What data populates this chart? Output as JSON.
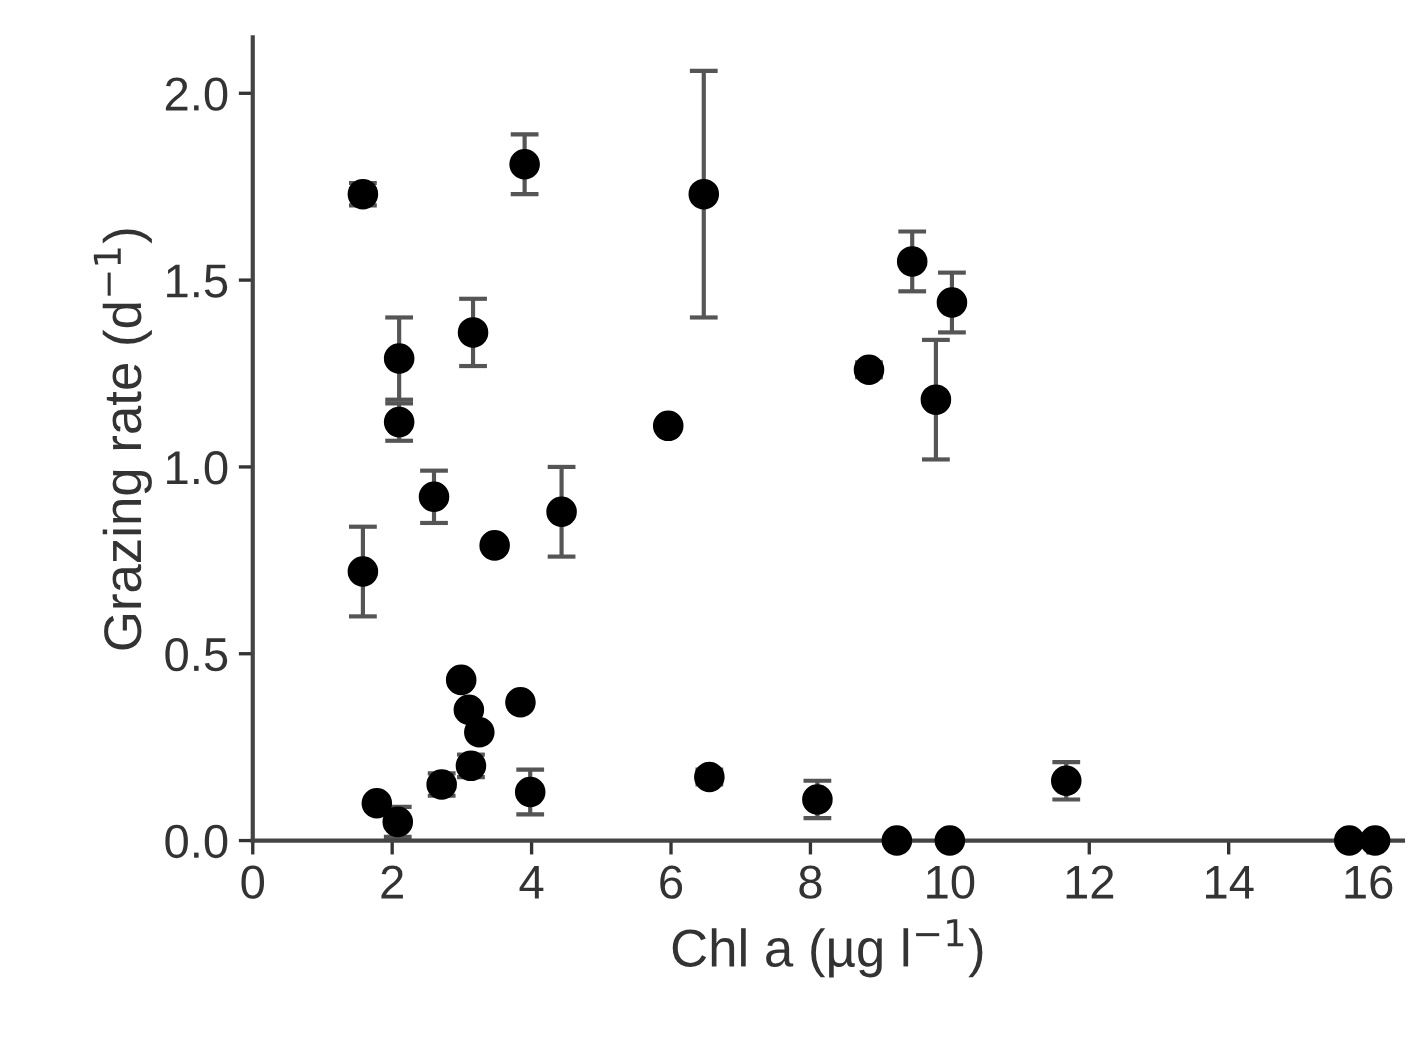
{
  "chart_data": {
    "type": "scatter",
    "xlabel": "Chl a (µg l$^{−1}$)",
    "ylabel": "Grazing rate (d$^{−1}$)",
    "x": [
      1.58,
      1.58,
      1.78,
      2.08,
      2.1,
      2.1,
      2.6,
      2.71,
      2.99,
      3.1,
      3.16,
      3.13,
      3.25,
      3.47,
      3.84,
      3.9,
      3.98,
      4.43,
      5.96,
      6.47,
      6.55,
      8.1,
      8.84,
      9.46,
      10.03,
      9.8,
      9.24,
      10.0,
      11.67,
      15.73,
      16.1
    ],
    "series": [
      {
        "color": "#000000",
        "values": [
          1.73,
          0.72,
          0.1,
          0.05,
          1.29,
          1.12,
          0.92,
          0.15,
          0.43,
          0.35,
          1.36,
          0.2,
          0.29,
          0.79,
          0.37,
          1.81,
          0.13,
          0.88,
          1.11,
          1.73,
          0.17,
          0.11,
          1.26,
          1.55,
          1.44,
          1.18,
          0.0,
          0.0,
          0.16,
          0.0,
          0.0
        ],
        "errors": [
          0.03,
          0.12,
          null,
          0.04,
          0.11,
          0.05,
          0.07,
          0.03,
          null,
          null,
          0.09,
          0.03,
          null,
          null,
          null,
          0.08,
          0.06,
          0.12,
          null,
          0.33,
          0.02,
          0.05,
          0.02,
          0.08,
          0.08,
          0.16,
          null,
          null,
          0.05,
          null,
          null
        ]
      }
    ],
    "marker": "circle",
    "xlim": [
      0,
      16.5
    ],
    "ylim": [
      0,
      2.15
    ],
    "xticks": [
      0,
      2,
      4,
      6,
      8,
      10,
      12,
      14,
      16
    ],
    "yticks": [
      {
        "value": 0,
        "label": "0.0"
      },
      {
        "value": 0.5,
        "label": "0.5"
      },
      {
        "value": 1,
        "label": "1.0"
      },
      {
        "value": 1.5,
        "label": "1.5"
      },
      {
        "value": 2,
        "label": "2.0"
      }
    ],
    "grid": false,
    "legend": false
  }
}
